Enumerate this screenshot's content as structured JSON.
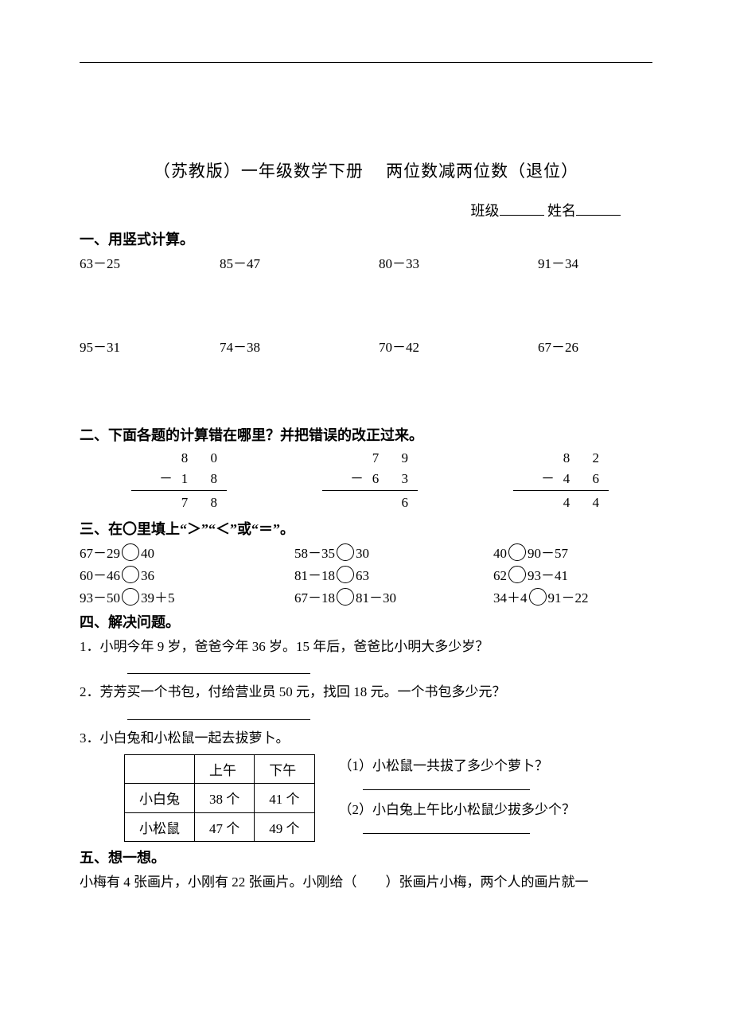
{
  "title": "（苏教版）一年级数学下册　 两位数减两位数（退位）",
  "header": {
    "class_label": "班级",
    "name_label": "姓名"
  },
  "sections": {
    "s1": "一、用竖式计算。",
    "s2": "二、下面各题的计算错在哪里？并把错误的改正过来。",
    "s3": "三、在〇里填上“＞”“＜”或“＝”。",
    "s4": "四、解决问题。",
    "s5": "五、想一想。"
  },
  "section1": {
    "row1": [
      "63－25",
      "85－47",
      "80－33",
      "91－34"
    ],
    "row2": [
      "95－31",
      "74－38",
      "70－42",
      "67－26"
    ]
  },
  "section2": {
    "problems": [
      {
        "top": "8  0",
        "sub": "1  8",
        "ans": "7  8"
      },
      {
        "top": "7  9",
        "sub": "6  3",
        "ans": "6"
      },
      {
        "top": "8  2",
        "sub": "4  6",
        "ans": "4  4"
      }
    ],
    "minus": "－"
  },
  "section3": {
    "rows": [
      [
        "67－29",
        "40",
        "58－35",
        "30",
        "40",
        "90－57"
      ],
      [
        "60－46",
        "36",
        "81－18",
        "63",
        "62",
        "93－41"
      ],
      [
        "93－50",
        "39＋5",
        "67－18",
        "81－30",
        "34＋4",
        "91－22"
      ]
    ]
  },
  "section4": {
    "q1": "1．小明今年 9 岁，爸爸今年 36 岁。15 年后，爸爸比小明大多少岁？",
    "q2": "2．芳芳买一个书包，付给营业员 50 元，找回 18 元。一个书包多少元？",
    "q3_stem": "3．小白兔和小松鼠一起去拔萝卜。",
    "q3_table": {
      "headers": [
        "",
        "上午",
        "下午"
      ],
      "rows": [
        [
          "小白兔",
          "38 个",
          "41 个"
        ],
        [
          "小松鼠",
          "47 个",
          "49 个"
        ]
      ]
    },
    "q3_sub1": "（1）小松鼠一共拔了多少个萝卜？",
    "q3_sub2": "（2）小白兔上午比小松鼠少拔多少个？"
  },
  "section5": {
    "text_a": "小梅有 4 张画片，小刚有 22 张画片。小刚给（",
    "text_b": "）张画片小梅，两个人的画片就一"
  },
  "colors": {
    "text": "#000000",
    "bg": "#ffffff"
  }
}
